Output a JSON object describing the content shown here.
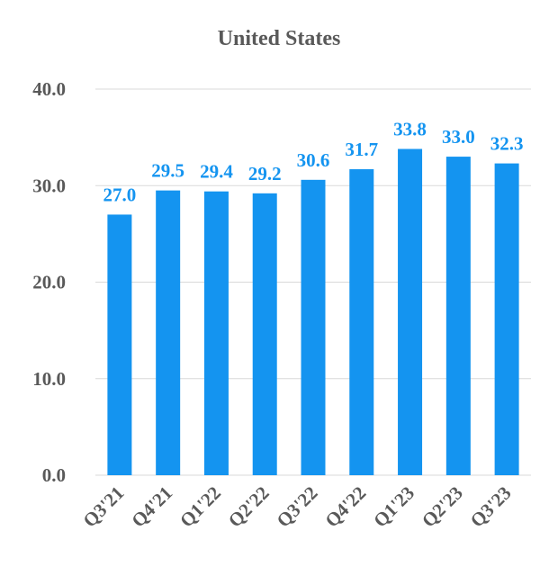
{
  "chart_data": {
    "type": "bar",
    "title": "United States",
    "categories": [
      "Q3'21",
      "Q4'21",
      "Q1'22",
      "Q2'22",
      "Q3'22",
      "Q4'22",
      "Q1'23",
      "Q2'23",
      "Q3'23"
    ],
    "values": [
      27.0,
      29.5,
      29.4,
      29.2,
      30.6,
      31.7,
      33.8,
      33.0,
      32.3
    ],
    "data_labels": [
      "27.0",
      "29.5",
      "29.4",
      "29.2",
      "30.6",
      "31.7",
      "33.8",
      "33.0",
      "32.3"
    ],
    "ylim": [
      0,
      40
    ],
    "yticks": [
      "0.0",
      "10.0",
      "20.0",
      "30.0",
      "40.0"
    ],
    "grid": true,
    "legend": "none",
    "colors": {
      "bar": "#1494f0",
      "label": "#1494f0",
      "text": "#595959",
      "grid": "#d9d9d9"
    }
  }
}
